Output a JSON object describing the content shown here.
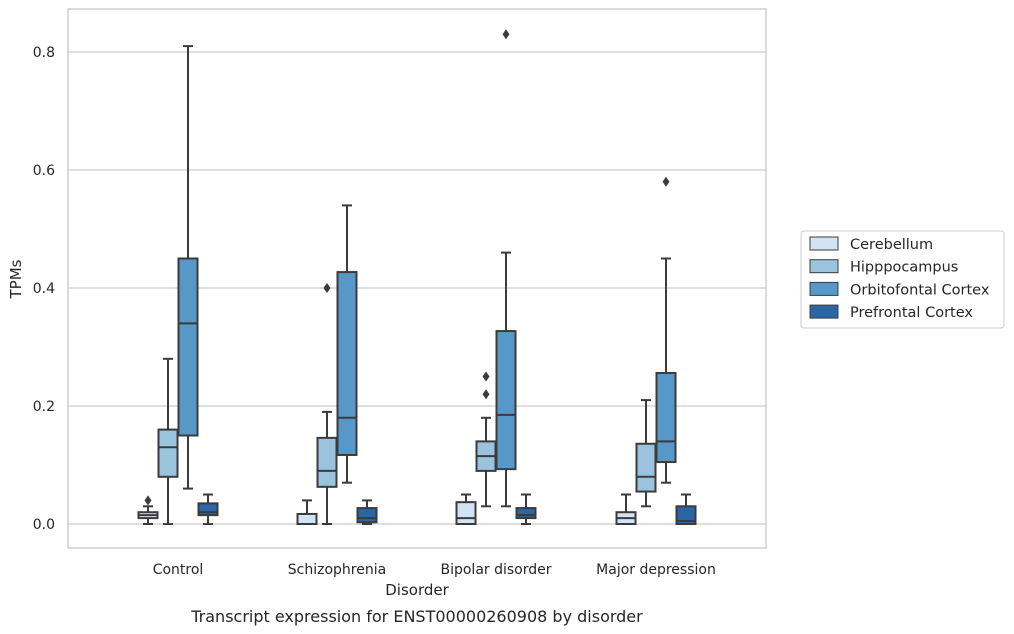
{
  "chart_data": {
    "type": "box",
    "xlabel": "Disorder",
    "ylabel": "TPMs",
    "caption": "Transcript expression for ENST00000260908 by disorder",
    "ylim": [
      -0.04,
      0.875
    ],
    "yticks": [
      0.0,
      0.2,
      0.4,
      0.6,
      0.8
    ],
    "ytick_labels": [
      "0.0",
      "0.2",
      "0.4",
      "0.6",
      "0.8"
    ],
    "grid": "horizontal",
    "legend_position": "right",
    "categories": [
      "Control",
      "Schizophrenia",
      "Bipolar disorder",
      "Major depression"
    ],
    "series": [
      {
        "name": "Cerebellum",
        "color": "#d2e3f3",
        "boxes": [
          {
            "low": 0.0,
            "q1": 0.01,
            "median": 0.015,
            "q3": 0.02,
            "high": 0.03,
            "outliers": [
              0.04
            ]
          },
          {
            "low": 0.0,
            "q1": 0.0,
            "median": 0.0,
            "q3": 0.017,
            "high": 0.04,
            "outliers": []
          },
          {
            "low": 0.0,
            "q1": 0.0,
            "median": 0.01,
            "q3": 0.037,
            "high": 0.05,
            "outliers": []
          },
          {
            "low": 0.0,
            "q1": 0.0,
            "median": 0.01,
            "q3": 0.02,
            "high": 0.05,
            "outliers": []
          }
        ]
      },
      {
        "name": "Hipppocampus",
        "color": "#9ac4de",
        "boxes": [
          {
            "low": 0.0,
            "q1": 0.08,
            "median": 0.13,
            "q3": 0.16,
            "high": 0.28,
            "outliers": []
          },
          {
            "low": 0.0,
            "q1": 0.063,
            "median": 0.09,
            "q3": 0.146,
            "high": 0.19,
            "outliers": [
              0.4
            ]
          },
          {
            "low": 0.03,
            "q1": 0.09,
            "median": 0.115,
            "q3": 0.14,
            "high": 0.18,
            "outliers": [
              0.22,
              0.25
            ]
          },
          {
            "low": 0.03,
            "q1": 0.055,
            "median": 0.08,
            "q3": 0.136,
            "high": 0.21,
            "outliers": []
          }
        ]
      },
      {
        "name": "Orbitofontal Cortex",
        "color": "#5898c8",
        "boxes": [
          {
            "low": 0.06,
            "q1": 0.15,
            "median": 0.34,
            "q3": 0.45,
            "high": 0.81,
            "outliers": []
          },
          {
            "low": 0.07,
            "q1": 0.117,
            "median": 0.18,
            "q3": 0.427,
            "high": 0.54,
            "outliers": []
          },
          {
            "low": 0.03,
            "q1": 0.093,
            "median": 0.185,
            "q3": 0.327,
            "high": 0.46,
            "outliers": [
              0.83
            ]
          },
          {
            "low": 0.07,
            "q1": 0.105,
            "median": 0.14,
            "q3": 0.256,
            "high": 0.45,
            "outliers": [
              0.58
            ]
          }
        ]
      },
      {
        "name": "Prefrontal Cortex",
        "color": "#2a66a6",
        "boxes": [
          {
            "low": 0.0,
            "q1": 0.015,
            "median": 0.02,
            "q3": 0.035,
            "high": 0.05,
            "outliers": []
          },
          {
            "low": 0.0,
            "q1": 0.003,
            "median": 0.01,
            "q3": 0.027,
            "high": 0.04,
            "outliers": []
          },
          {
            "low": 0.0,
            "q1": 0.01,
            "median": 0.015,
            "q3": 0.027,
            "high": 0.05,
            "outliers": []
          },
          {
            "low": 0.0,
            "q1": 0.0,
            "median": 0.005,
            "q3": 0.03,
            "high": 0.05,
            "outliers": []
          }
        ]
      }
    ]
  }
}
